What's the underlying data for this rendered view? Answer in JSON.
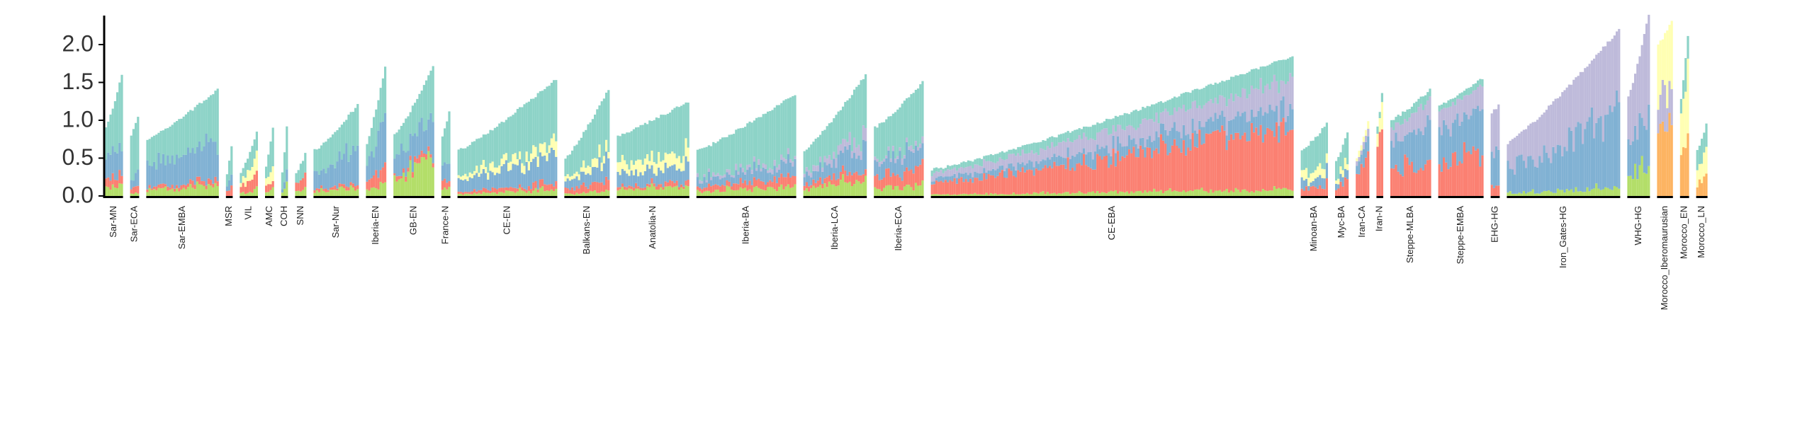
{
  "chart_data": {
    "type": "bar",
    "stacked": true,
    "title": "",
    "xlabel": "",
    "ylabel": "",
    "ylim": [
      0,
      2.4
    ],
    "yticks": [
      "0.0",
      "0.5",
      "1.0",
      "1.5",
      "2.0"
    ],
    "grid": false,
    "legend": "none",
    "colors": {
      "teal": "#8dd3c7",
      "blue": "#80b1d3",
      "red": "#fb8072",
      "green": "#b3de69",
      "lavender": "#bebada",
      "yellow": "#ffffb3",
      "orange": "#fdb462"
    },
    "groups": [
      {
        "label": "Sar-MN",
        "n": 8,
        "min": 0.9,
        "max": 1.6,
        "comp": {
          "teal": 0.55,
          "blue": 0.25,
          "green": 0.1,
          "red": 0.1
        }
      },
      {
        "label": "Sar-ECA",
        "n": 4,
        "min": 0.8,
        "max": 1.05,
        "comp": {
          "teal": 0.7,
          "blue": 0.15,
          "red": 0.1,
          "green": 0.05
        }
      },
      {
        "label": "Sar-EMBA",
        "n": 32,
        "min": 0.75,
        "max": 1.4,
        "comp": {
          "teal": 0.45,
          "blue": 0.4,
          "green": 0.1,
          "red": 0.05
        }
      },
      {
        "label": "MSR",
        "n": 3,
        "min": 0.3,
        "max": 0.65,
        "comp": {
          "teal": 0.5,
          "blue": 0.3,
          "red": 0.2
        }
      },
      {
        "label": "VIL",
        "n": 8,
        "min": 0.3,
        "max": 0.85,
        "comp": {
          "teal": 0.4,
          "red": 0.25,
          "yellow": 0.25,
          "green": 0.1
        }
      },
      {
        "label": "AMC",
        "n": 4,
        "min": 0.4,
        "max": 0.9,
        "comp": {
          "teal": 0.5,
          "yellow": 0.25,
          "red": 0.15,
          "green": 0.1
        }
      },
      {
        "label": "COH",
        "n": 3,
        "min": 0.3,
        "max": 0.9,
        "comp": {
          "teal": 0.6,
          "blue": 0.2,
          "green": 0.2
        }
      },
      {
        "label": "SNN",
        "n": 5,
        "min": 0.3,
        "max": 0.55,
        "comp": {
          "teal": 0.45,
          "red": 0.35,
          "green": 0.2
        }
      },
      {
        "label": "Sar-Nur",
        "n": 20,
        "min": 0.6,
        "max": 1.2,
        "comp": {
          "teal": 0.45,
          "blue": 0.4,
          "green": 0.1,
          "red": 0.05
        }
      },
      {
        "label": "Iberia-EN",
        "n": 9,
        "min": 0.7,
        "max": 1.7,
        "comp": {
          "teal": 0.4,
          "blue": 0.35,
          "red": 0.15,
          "green": 0.1
        }
      },
      {
        "label": "GB-EN",
        "n": 18,
        "min": 0.8,
        "max": 1.7,
        "comp": {
          "teal": 0.35,
          "blue": 0.3,
          "green": 0.3,
          "red": 0.05
        }
      },
      {
        "label": "France-N",
        "n": 4,
        "min": 0.8,
        "max": 1.1,
        "comp": {
          "teal": 0.55,
          "blue": 0.25,
          "red": 0.1,
          "green": 0.1
        }
      },
      {
        "label": "CE-EN",
        "n": 44,
        "min": 0.6,
        "max": 1.55,
        "comp": {
          "teal": 0.55,
          "blue": 0.25,
          "yellow": 0.1,
          "green": 0.05,
          "red": 0.05
        }
      },
      {
        "label": "Balkans-EN",
        "n": 20,
        "min": 0.5,
        "max": 1.4,
        "comp": {
          "teal": 0.55,
          "blue": 0.2,
          "yellow": 0.1,
          "red": 0.1,
          "green": 0.05
        }
      },
      {
        "label": "Anatolia-N",
        "n": 32,
        "min": 0.8,
        "max": 1.25,
        "comp": {
          "teal": 0.5,
          "blue": 0.2,
          "yellow": 0.15,
          "green": 0.1,
          "red": 0.05
        }
      },
      {
        "label": "Iberia-BA",
        "n": 44,
        "min": 0.6,
        "max": 1.35,
        "comp": {
          "teal": 0.6,
          "blue": 0.15,
          "red": 0.1,
          "green": 0.1,
          "lavender": 0.05
        }
      },
      {
        "label": "Iberia-LCA",
        "n": 28,
        "min": 0.6,
        "max": 1.6,
        "comp": {
          "teal": 0.45,
          "blue": 0.2,
          "lavender": 0.1,
          "red": 0.1,
          "green": 0.15
        }
      },
      {
        "label": "Iberia-ECA",
        "n": 22,
        "min": 0.9,
        "max": 1.5,
        "comp": {
          "teal": 0.5,
          "blue": 0.2,
          "red": 0.15,
          "green": 0.1,
          "lavender": 0.05
        }
      },
      {
        "label": "CE-EBA",
        "n": 160,
        "min": 0.35,
        "max": 1.85,
        "comp": {
          "red": 0.45,
          "lavender": 0.2,
          "teal": 0.15,
          "blue": 0.15,
          "green": 0.05
        }
      },
      {
        "label": "Minoan-BA",
        "n": 12,
        "min": 0.6,
        "max": 0.95,
        "comp": {
          "teal": 0.55,
          "yellow": 0.15,
          "red": 0.15,
          "blue": 0.15
        }
      },
      {
        "label": "Myc-BA",
        "n": 6,
        "min": 0.45,
        "max": 0.85,
        "comp": {
          "teal": 0.45,
          "red": 0.25,
          "blue": 0.15,
          "yellow": 0.15
        }
      },
      {
        "label": "Iran-CA",
        "n": 6,
        "min": 0.5,
        "max": 1.0,
        "comp": {
          "red": 0.6,
          "blue": 0.2,
          "yellow": 0.1,
          "lavender": 0.1
        }
      },
      {
        "label": "Iran-N",
        "n": 3,
        "min": 0.9,
        "max": 1.35,
        "comp": {
          "red": 0.7,
          "yellow": 0.2,
          "teal": 0.1
        }
      },
      {
        "label": "Steppe-MLBA",
        "n": 18,
        "min": 1.0,
        "max": 1.4,
        "comp": {
          "red": 0.35,
          "blue": 0.35,
          "lavender": 0.2,
          "teal": 0.1
        }
      },
      {
        "label": "Steppe-EMBA",
        "n": 20,
        "min": 1.2,
        "max": 1.55,
        "comp": {
          "blue": 0.4,
          "red": 0.35,
          "lavender": 0.2,
          "teal": 0.05
        }
      },
      {
        "label": "EHG-HG",
        "n": 4,
        "min": 1.1,
        "max": 1.2,
        "comp": {
          "lavender": 0.55,
          "blue": 0.35,
          "red": 0.1
        }
      },
      {
        "label": "Iron_Gates-HG",
        "n": 50,
        "min": 0.7,
        "max": 2.2,
        "comp": {
          "lavender": 0.5,
          "blue": 0.45,
          "green": 0.05
        }
      },
      {
        "label": "WHG-HG",
        "n": 10,
        "min": 1.3,
        "max": 2.4,
        "comp": {
          "lavender": 0.45,
          "blue": 0.35,
          "green": 0.2
        }
      },
      {
        "label": "Morocco_Iberomaurusian",
        "n": 7,
        "min": 2.0,
        "max": 2.3,
        "comp": {
          "orange": 0.45,
          "yellow": 0.35,
          "lavender": 0.2
        }
      },
      {
        "label": "Morocco_EN",
        "n": 4,
        "min": 1.3,
        "max": 2.1,
        "comp": {
          "yellow": 0.4,
          "orange": 0.4,
          "teal": 0.2
        }
      },
      {
        "label": "Morocco_LN",
        "n": 5,
        "min": 0.6,
        "max": 0.95,
        "comp": {
          "teal": 0.4,
          "yellow": 0.3,
          "orange": 0.3
        }
      }
    ]
  }
}
